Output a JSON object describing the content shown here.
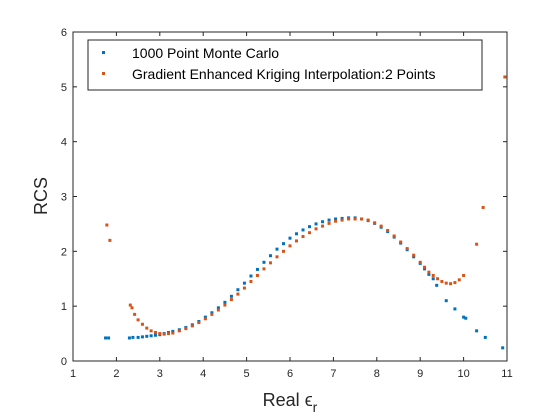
{
  "chart_data": {
    "type": "scatter",
    "title": "",
    "xlabel": "Real",
    "xlabel_symbol": "ϵ",
    "xlabel_subscript": "r",
    "ylabel": "RCS",
    "xlim": [
      1,
      11
    ],
    "ylim": [
      0,
      6
    ],
    "xticks": [
      "1",
      "2",
      "3",
      "4",
      "5",
      "6",
      "7",
      "8",
      "9",
      "10",
      "11"
    ],
    "yticks": [
      "0",
      "1",
      "2",
      "3",
      "4",
      "5",
      "6"
    ],
    "grid": false,
    "legend_position": "top-left",
    "series": [
      {
        "name": "1000 Point Monte Carlo",
        "color": "#0072BD",
        "points": [
          [
            1.75,
            0.42
          ],
          [
            1.82,
            0.42
          ],
          [
            2.3,
            0.42
          ],
          [
            2.38,
            0.43
          ],
          [
            2.5,
            0.43
          ],
          [
            2.6,
            0.44
          ],
          [
            2.7,
            0.45
          ],
          [
            2.8,
            0.46
          ],
          [
            2.9,
            0.47
          ],
          [
            3.0,
            0.48
          ],
          [
            3.1,
            0.5
          ],
          [
            3.2,
            0.52
          ],
          [
            3.3,
            0.54
          ],
          [
            3.45,
            0.57
          ],
          [
            3.6,
            0.61
          ],
          [
            3.75,
            0.66
          ],
          [
            3.9,
            0.72
          ],
          [
            4.05,
            0.8
          ],
          [
            4.2,
            0.88
          ],
          [
            4.35,
            0.97
          ],
          [
            4.5,
            1.07
          ],
          [
            4.65,
            1.18
          ],
          [
            4.8,
            1.3
          ],
          [
            4.95,
            1.42
          ],
          [
            5.1,
            1.55
          ],
          [
            5.25,
            1.67
          ],
          [
            5.4,
            1.8
          ],
          [
            5.55,
            1.92
          ],
          [
            5.7,
            2.04
          ],
          [
            5.85,
            2.14
          ],
          [
            6.0,
            2.24
          ],
          [
            6.15,
            2.32
          ],
          [
            6.3,
            2.39
          ],
          [
            6.45,
            2.45
          ],
          [
            6.6,
            2.5
          ],
          [
            6.75,
            2.54
          ],
          [
            6.9,
            2.57
          ],
          [
            7.05,
            2.59
          ],
          [
            7.2,
            2.6
          ],
          [
            7.35,
            2.61
          ],
          [
            7.5,
            2.61
          ],
          [
            7.65,
            2.59
          ],
          [
            7.8,
            2.56
          ],
          [
            7.95,
            2.51
          ],
          [
            8.1,
            2.44
          ],
          [
            8.25,
            2.36
          ],
          [
            8.4,
            2.26
          ],
          [
            8.55,
            2.15
          ],
          [
            8.7,
            2.03
          ],
          [
            8.85,
            1.9
          ],
          [
            9.0,
            1.78
          ],
          [
            9.1,
            1.68
          ],
          [
            9.2,
            1.58
          ],
          [
            9.3,
            1.5
          ],
          [
            9.38,
            1.38
          ],
          [
            9.6,
            1.1
          ],
          [
            9.8,
            0.95
          ],
          [
            10.0,
            0.8
          ],
          [
            10.05,
            0.78
          ],
          [
            10.3,
            0.55
          ],
          [
            10.5,
            0.43
          ],
          [
            10.9,
            0.24
          ]
        ]
      },
      {
        "name": "Gradient Enhanced Kriging Interpolation:2 Points",
        "color": "#D95319",
        "points": [
          [
            1.78,
            2.48
          ],
          [
            1.85,
            2.2
          ],
          [
            2.32,
            1.02
          ],
          [
            2.36,
            0.97
          ],
          [
            2.42,
            0.85
          ],
          [
            2.5,
            0.75
          ],
          [
            2.6,
            0.67
          ],
          [
            2.7,
            0.6
          ],
          [
            2.8,
            0.55
          ],
          [
            2.9,
            0.52
          ],
          [
            3.0,
            0.5
          ],
          [
            3.1,
            0.49
          ],
          [
            3.2,
            0.5
          ],
          [
            3.3,
            0.51
          ],
          [
            3.45,
            0.55
          ],
          [
            3.6,
            0.59
          ],
          [
            3.75,
            0.64
          ],
          [
            3.9,
            0.7
          ],
          [
            4.05,
            0.77
          ],
          [
            4.2,
            0.85
          ],
          [
            4.35,
            0.93
          ],
          [
            4.5,
            1.02
          ],
          [
            4.65,
            1.12
          ],
          [
            4.8,
            1.22
          ],
          [
            4.95,
            1.33
          ],
          [
            5.1,
            1.45
          ],
          [
            5.25,
            1.56
          ],
          [
            5.4,
            1.68
          ],
          [
            5.55,
            1.79
          ],
          [
            5.7,
            1.9
          ],
          [
            5.85,
            2.0
          ],
          [
            6.0,
            2.1
          ],
          [
            6.15,
            2.19
          ],
          [
            6.3,
            2.27
          ],
          [
            6.45,
            2.34
          ],
          [
            6.6,
            2.41
          ],
          [
            6.75,
            2.46
          ],
          [
            6.9,
            2.51
          ],
          [
            7.05,
            2.55
          ],
          [
            7.2,
            2.57
          ],
          [
            7.35,
            2.59
          ],
          [
            7.5,
            2.59
          ],
          [
            7.65,
            2.59
          ],
          [
            7.8,
            2.57
          ],
          [
            7.95,
            2.52
          ],
          [
            8.1,
            2.46
          ],
          [
            8.25,
            2.38
          ],
          [
            8.4,
            2.28
          ],
          [
            8.55,
            2.17
          ],
          [
            8.7,
            2.05
          ],
          [
            8.85,
            1.93
          ],
          [
            9.0,
            1.8
          ],
          [
            9.1,
            1.71
          ],
          [
            9.2,
            1.62
          ],
          [
            9.3,
            1.56
          ],
          [
            9.4,
            1.5
          ],
          [
            9.5,
            1.45
          ],
          [
            9.6,
            1.42
          ],
          [
            9.7,
            1.41
          ],
          [
            9.8,
            1.43
          ],
          [
            9.9,
            1.48
          ],
          [
            10.0,
            1.56
          ],
          [
            10.3,
            2.13
          ],
          [
            10.45,
            2.8
          ],
          [
            10.95,
            5.18
          ]
        ]
      }
    ]
  }
}
